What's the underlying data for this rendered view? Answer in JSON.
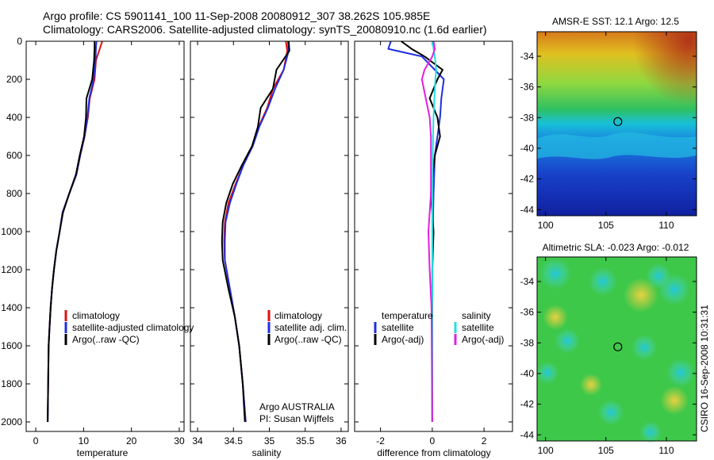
{
  "title_lines": [
    "Argo profile: CS 5901141_100 11-Sep-2008 20080912_307 38.262S 105.985E",
    "Climatology: CARS2006. Satellite-adjusted climatology: synTS_20080910.nc (1.6d earlier)"
  ],
  "side_label": "CSIRO 16-Sep-2008 10:31:31",
  "colors": {
    "climatology": "#e01010",
    "satellite": "#1f2fe0",
    "argo": "#000000",
    "satellite_salinity": "#20e0e0",
    "argo_adj_salinity": "#e020e0"
  },
  "chart_data": [
    {
      "type": "line",
      "id": "temperature",
      "xlabel": "temperature",
      "xlim": [
        -2,
        31
      ],
      "xticks": [
        0,
        10,
        20,
        30
      ],
      "ylim": [
        2050,
        0
      ],
      "yticks": [
        0,
        200,
        400,
        600,
        800,
        1000,
        1200,
        1400,
        1600,
        1800,
        2000
      ],
      "legend_entries": [
        "climatology",
        "satellite-adjusted climatology",
        "Argo(..raw -QC)"
      ],
      "series": [
        {
          "name": "climatology",
          "role": "climatology",
          "x": [
            13.9,
            13.5,
            12.6,
            12.3,
            11.3,
            10.9,
            10.2,
            9.3,
            8.5,
            7.0,
            5.6,
            5.0,
            4.3,
            3.8,
            3.4,
            3.1,
            2.9,
            2.7,
            2.6,
            2.5
          ],
          "y": [
            0,
            30,
            100,
            200,
            300,
            400,
            500,
            600,
            700,
            800,
            900,
            1000,
            1100,
            1200,
            1300,
            1400,
            1500,
            1600,
            1800,
            2000
          ]
        },
        {
          "name": "satellite-adjusted climatology",
          "role": "satellite",
          "x": [
            12.7,
            12.6,
            12.5,
            12.1,
            11.2,
            10.8,
            10.2,
            9.3,
            8.5,
            7.0,
            5.6,
            5.0,
            4.3,
            3.8,
            3.4,
            3.1,
            2.9,
            2.7,
            2.6,
            2.5
          ],
          "y": [
            0,
            30,
            100,
            200,
            300,
            400,
            500,
            600,
            700,
            800,
            900,
            1000,
            1100,
            1200,
            1300,
            1400,
            1500,
            1600,
            1800,
            2000
          ]
        },
        {
          "name": "Argo(..raw -QC)",
          "role": "argo",
          "x": [
            12.3,
            12.3,
            12.2,
            11.8,
            10.6,
            10.5,
            10.1,
            9.2,
            8.4,
            7.0,
            5.7,
            5.0,
            4.3,
            3.8,
            3.4,
            3.1,
            2.9,
            2.7,
            2.6,
            2.5
          ],
          "y": [
            0,
            30,
            100,
            200,
            300,
            400,
            500,
            600,
            700,
            800,
            900,
            1000,
            1100,
            1200,
            1300,
            1400,
            1500,
            1600,
            1800,
            2000
          ]
        }
      ]
    },
    {
      "type": "line",
      "id": "salinity",
      "xlabel": "salinity",
      "xlim": [
        33.9,
        36.1
      ],
      "xticks": [
        34,
        34.5,
        35,
        35.5,
        36
      ],
      "xtick_labels": [
        "34",
        "34.5",
        "35",
        "35.5",
        "36"
      ],
      "ylim": [
        2050,
        0
      ],
      "legend_entries": [
        "climatology",
        "satellite adj. clim.",
        "Argo(..raw -QC)"
      ],
      "text_lines": [
        "Argo AUSTRALIA",
        "PI: Susan Wijffels"
      ],
      "series": [
        {
          "name": "climatology",
          "role": "climatology",
          "x": [
            35.23,
            35.25,
            35.2,
            35.05,
            34.97,
            34.85,
            34.76,
            34.64,
            34.53,
            34.43,
            34.38,
            34.37,
            34.38,
            34.45,
            34.52,
            34.58,
            34.63,
            34.67
          ],
          "y": [
            0,
            50,
            150,
            250,
            350,
            450,
            550,
            650,
            750,
            850,
            950,
            1050,
            1150,
            1300,
            1450,
            1600,
            1800,
            2000
          ]
        },
        {
          "name": "satellite adj. clim.",
          "role": "satellite",
          "x": [
            35.26,
            35.27,
            35.2,
            35.08,
            34.98,
            34.86,
            34.77,
            34.64,
            34.54,
            34.45,
            34.39,
            34.38,
            34.38,
            34.45,
            34.52,
            34.58,
            34.63,
            34.67
          ],
          "y": [
            0,
            50,
            150,
            250,
            350,
            450,
            550,
            650,
            750,
            850,
            950,
            1050,
            1150,
            1300,
            1450,
            1600,
            1800,
            2000
          ]
        },
        {
          "name": "Argo(..raw -QC)",
          "role": "argo",
          "x": [
            35.27,
            35.28,
            35.1,
            35.05,
            34.88,
            34.84,
            34.76,
            34.62,
            34.49,
            34.4,
            34.35,
            34.34,
            34.35,
            34.43,
            34.52,
            34.58,
            34.63,
            34.66
          ],
          "y": [
            0,
            50,
            150,
            250,
            350,
            450,
            550,
            650,
            750,
            850,
            950,
            1050,
            1150,
            1300,
            1450,
            1600,
            1800,
            2000
          ]
        }
      ]
    },
    {
      "type": "line",
      "id": "difference",
      "xlabel": "difference from climatology",
      "xlim": [
        -3,
        3.1
      ],
      "xticks": [
        -2,
        0,
        2
      ],
      "ylim": [
        2050,
        0
      ],
      "legend_groups": [
        {
          "heading": "temperature",
          "entries": [
            "satellite",
            "Argo(-adj)"
          ]
        },
        {
          "heading": "salinity",
          "entries": [
            "satellite",
            "Argo(-adj)"
          ]
        }
      ],
      "series": [
        {
          "name": "satellite",
          "group": "temperature",
          "role": "satellite",
          "x": [
            -1.6,
            -1.7,
            -0.4,
            0.1,
            0.45,
            0.35,
            0.3,
            0.2,
            0.1,
            0.05,
            0.02,
            0.0,
            0.0,
            0.0,
            0.0,
            0.0
          ],
          "y": [
            0,
            40,
            80,
            150,
            200,
            300,
            400,
            500,
            600,
            800,
            1000,
            1200,
            1400,
            1600,
            1800,
            2000
          ]
        },
        {
          "name": "Argo(-adj)",
          "group": "temperature",
          "role": "argo",
          "x": [
            -1.2,
            -0.8,
            -0.3,
            0.4,
            0.2,
            -0.1,
            0.2,
            0.3,
            0.1,
            -0.05,
            0.05,
            0.0,
            0.0,
            0.0,
            0.0,
            0.0
          ],
          "y": [
            0,
            40,
            80,
            150,
            200,
            300,
            400,
            500,
            600,
            800,
            1000,
            1200,
            1400,
            1600,
            1800,
            2000
          ]
        },
        {
          "name": "satellite",
          "group": "salinity",
          "role": "satellite_salinity",
          "x": [
            0.0,
            0.05,
            0.1,
            0.15,
            0.12,
            0.08,
            0.05,
            0.03,
            0.02,
            0.0,
            0.0,
            0.0,
            0.0,
            0.0,
            0.0,
            0.0
          ],
          "y": [
            0,
            40,
            80,
            150,
            200,
            300,
            400,
            500,
            600,
            800,
            1000,
            1200,
            1400,
            1600,
            1800,
            2000
          ]
        },
        {
          "name": "Argo(-adj)",
          "group": "salinity",
          "role": "argo_adj_salinity",
          "x": [
            0.05,
            0.1,
            0.0,
            -0.3,
            -0.4,
            -0.25,
            -0.1,
            -0.05,
            -0.05,
            -0.05,
            -0.15,
            -0.1,
            -0.03,
            -0.02,
            -0.01,
            0.0
          ],
          "y": [
            0,
            40,
            80,
            150,
            200,
            300,
            400,
            500,
            600,
            800,
            1000,
            1200,
            1400,
            1600,
            1800,
            2000
          ]
        }
      ]
    },
    {
      "type": "heatmap",
      "id": "sst-map",
      "title": "AMSR-E SST: 12.1 Argo: 12.5",
      "xlim": [
        99.3,
        112.5
      ],
      "ylim": [
        -44.4,
        -32.4
      ],
      "xticks": [
        100,
        105,
        110
      ],
      "yticks": [
        -34,
        -36,
        -38,
        -40,
        -42,
        -44
      ],
      "marker": {
        "lon": 105.985,
        "lat": -38.262
      }
    },
    {
      "type": "heatmap",
      "id": "sla-map",
      "title": "Altimetric SLA: -0.023 Argo: -0.012",
      "xlim": [
        99.3,
        112.5
      ],
      "ylim": [
        -44.4,
        -32.4
      ],
      "xticks": [
        100,
        105,
        110
      ],
      "yticks": [
        -34,
        -36,
        -38,
        -40,
        -42,
        -44
      ],
      "marker": {
        "lon": 105.985,
        "lat": -38.262
      }
    }
  ]
}
